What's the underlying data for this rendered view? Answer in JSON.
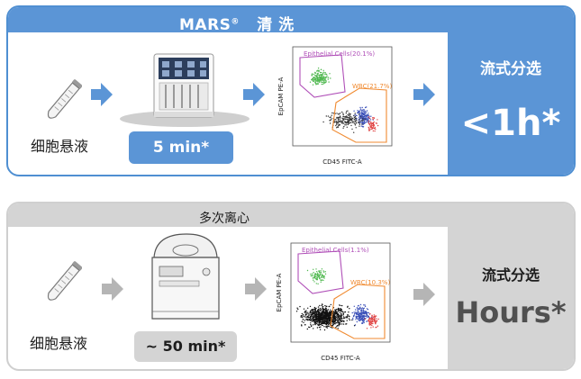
{
  "panel_top": {
    "title": "MARS",
    "title_mark": "®",
    "title_suffix": "清 洗",
    "caption": "细胞悬液",
    "duration": "5 min*",
    "result_label": "流式分选",
    "result_time": "<1h*",
    "plot": {
      "gate_epithelial": "Epithelial Cells(20.1%)",
      "gate_wbc": "WBC(21.7%)",
      "x_axis_label": "CD45 FITC-A",
      "y_axis_label": "EpCAM PE-A"
    }
  },
  "panel_bottom": {
    "title": "多次离心",
    "caption": "细胞悬液",
    "duration": "~ 50 min*",
    "result_label": "流式分选",
    "result_time": "Hours*",
    "plot": {
      "gate_epithelial": "Epithelial Cells(1.1%)",
      "gate_wbc": "WBC(10.3%)",
      "x_axis_label": "CD45 FITC-A",
      "y_axis_label": "EpCAM PE-A"
    }
  },
  "colors": {
    "accent_blue": "#5b95d6",
    "panel_grey": "#d4d4d4",
    "arrow_grey": "#b5b5b5",
    "gate_epithelial": "#b04fb8",
    "gate_wbc": "#f08a30",
    "dot_green": "#4fb84f",
    "dot_blue": "#3a4fb8"
  }
}
